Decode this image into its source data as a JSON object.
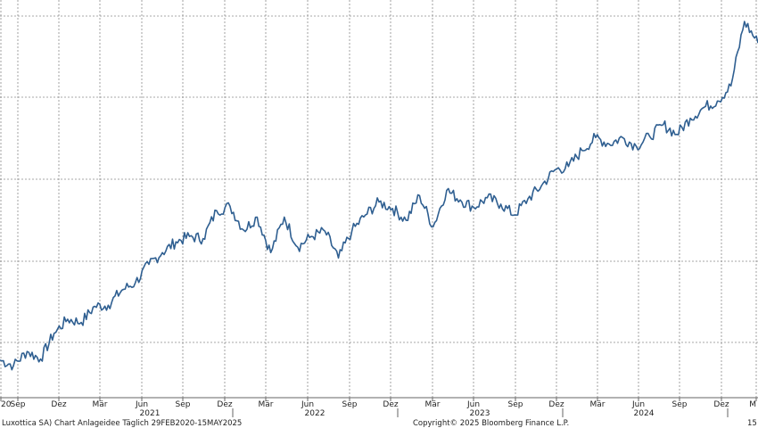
{
  "chart_data": {
    "type": "line",
    "series": [
      {
        "x": [
          "2020-07-01",
          "2020-08-01",
          "2020-09-01",
          "2020-10-01",
          "2020-11-01",
          "2020-12-01",
          "2021-01-01",
          "2021-02-01",
          "2021-03-01",
          "2021-04-01",
          "2021-05-01",
          "2021-06-01",
          "2021-07-01",
          "2021-08-01",
          "2021-09-01",
          "2021-10-01",
          "2021-11-01",
          "2021-12-01",
          "2022-01-01",
          "2022-02-01",
          "2022-03-01",
          "2022-04-01",
          "2022-05-01",
          "2022-06-01",
          "2022-07-01",
          "2022-08-01",
          "2022-09-01",
          "2022-10-01",
          "2022-11-01",
          "2022-12-01",
          "2023-01-01",
          "2023-02-01",
          "2023-03-01",
          "2023-04-01",
          "2023-05-01",
          "2023-06-01",
          "2023-07-01",
          "2023-08-01",
          "2023-09-01",
          "2023-10-01",
          "2023-11-01",
          "2023-12-01",
          "2024-01-01",
          "2024-02-01",
          "2024-03-01",
          "2024-04-01",
          "2024-05-01",
          "2024-06-01",
          "2024-07-01",
          "2024-08-01",
          "2024-09-01",
          "2024-10-01",
          "2024-11-01",
          "2024-12-01",
          "2025-01-01",
          "2025-02-01",
          "2025-03-01"
        ],
        "values": [
          21.5,
          21.0,
          22.3,
          21.6,
          24.0,
          25.3,
          25.0,
          26.5,
          26.6,
          28.0,
          28.7,
          30.4,
          31.5,
          32.5,
          33.0,
          32.8,
          35.4,
          35.8,
          33.6,
          34.8,
          31.5,
          34.8,
          32.0,
          33.0,
          33.5,
          31.0,
          33.5,
          35.0,
          36.2,
          35.6,
          34.5,
          36.8,
          33.9,
          37.3,
          36.4,
          35.7,
          36.6,
          36.0,
          35.0,
          36.5,
          37.7,
          39.2,
          39.5,
          41.0,
          42.2,
          41.6,
          42.2,
          41.4,
          42.3,
          43.4,
          42.5,
          44.0,
          45.0,
          45.6,
          47.0,
          53.0,
          51.0
        ]
      }
    ],
    "x_tick_labels": [
      "20",
      "Sep",
      "Dez",
      "Mär",
      "Jun",
      "Sep",
      "Dez",
      "Mär",
      "Jun",
      "Sep",
      "Dez",
      "Mär",
      "Jun",
      "Sep",
      "Dez",
      "Mär",
      "Jun",
      "Sep",
      "Dez",
      "M"
    ],
    "year_labels": [
      "2021",
      "2022",
      "2023",
      "2024"
    ],
    "ylim": [
      18,
      55
    ],
    "grid": true,
    "color": "#2f5f91"
  },
  "footer": {
    "left": "Luxottica SA) Chart Anlageidee  Täglich 29FEB2020-15MAY2025",
    "center": "Copyright© 2025 Bloomberg Finance L.P.",
    "right": "15"
  }
}
